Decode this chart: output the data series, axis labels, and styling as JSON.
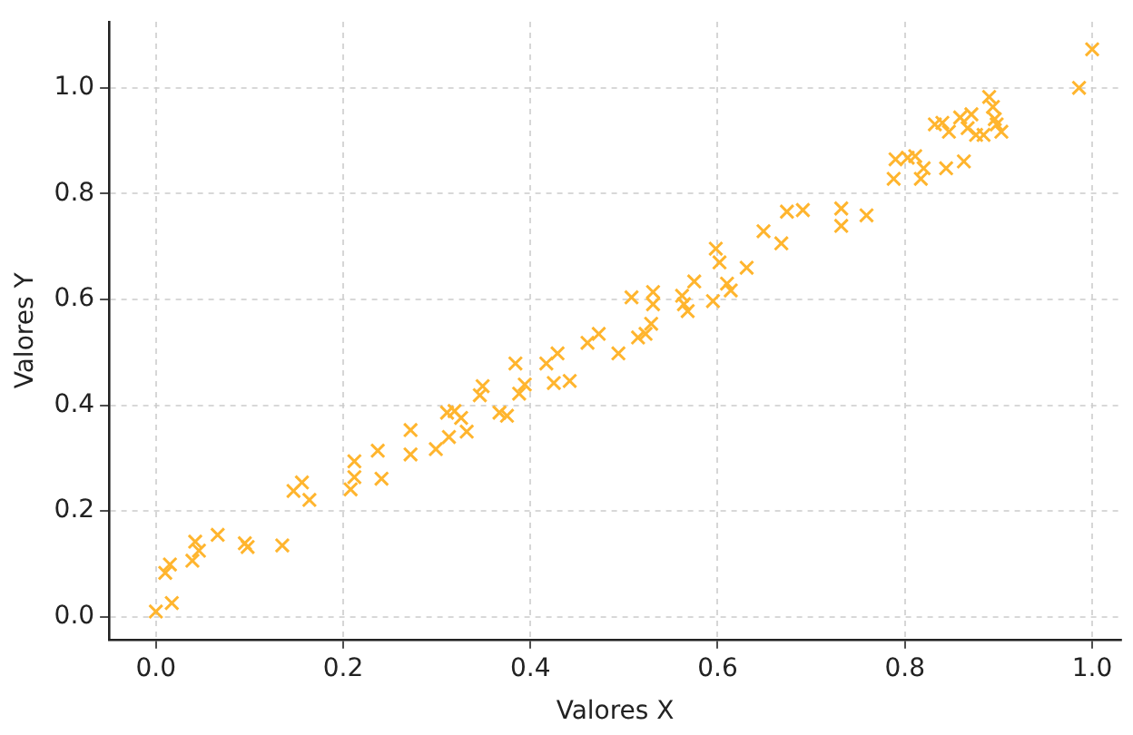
{
  "chart_data": {
    "type": "scatter",
    "xlabel": "Valores X",
    "ylabel": "Valores Y",
    "marker": "cross",
    "grid": true,
    "xlim": [
      -0.05,
      1.031
    ],
    "ylim": [
      -0.043,
      1.125
    ],
    "xticks": [
      {
        "value": 0,
        "label": "0.0"
      },
      0.2,
      0.4,
      0.6,
      0.8,
      {
        "value": 1,
        "label": "1.0"
      }
    ],
    "yticks": [
      {
        "value": 0,
        "label": "0.0"
      },
      0.2,
      0.4,
      0.6,
      0.8,
      {
        "value": 1,
        "label": "1.0"
      }
    ],
    "series": [
      {
        "color": "#ffb52e",
        "x": [
          0.0,
          0.017,
          0.01,
          0.015,
          0.039,
          0.042,
          0.046,
          0.066,
          0.095,
          0.098,
          0.135,
          0.147,
          0.156,
          0.164,
          0.208,
          0.212,
          0.212,
          0.237,
          0.241,
          0.272,
          0.272,
          0.299,
          0.311,
          0.319,
          0.326,
          0.313,
          0.332,
          0.346,
          0.349,
          0.367,
          0.375,
          0.384,
          0.388,
          0.394,
          0.417,
          0.429,
          0.425,
          0.442,
          0.461,
          0.473,
          0.494,
          0.515,
          0.523,
          0.529,
          0.508,
          0.531,
          0.531,
          0.562,
          0.564,
          0.568,
          0.575,
          0.595,
          0.61,
          0.614,
          0.598,
          0.602,
          0.631,
          0.649,
          0.668,
          0.674,
          0.691,
          0.732,
          0.732,
          0.759,
          0.788,
          0.79,
          0.803,
          0.811,
          0.817,
          0.82,
          0.844,
          0.863,
          0.832,
          0.84,
          0.847,
          0.859,
          0.867,
          0.871,
          0.876,
          0.884,
          0.89,
          0.894,
          0.896,
          0.898,
          0.903,
          0.986,
          1.0
        ],
        "values": [
          0.01,
          0.026,
          0.083,
          0.099,
          0.106,
          0.142,
          0.125,
          0.155,
          0.139,
          0.132,
          0.135,
          0.238,
          0.254,
          0.221,
          0.241,
          0.264,
          0.294,
          0.314,
          0.261,
          0.353,
          0.307,
          0.317,
          0.386,
          0.389,
          0.376,
          0.34,
          0.35,
          0.419,
          0.436,
          0.386,
          0.38,
          0.479,
          0.422,
          0.439,
          0.479,
          0.498,
          0.442,
          0.446,
          0.518,
          0.535,
          0.498,
          0.528,
          0.535,
          0.554,
          0.604,
          0.614,
          0.591,
          0.607,
          0.591,
          0.578,
          0.634,
          0.597,
          0.63,
          0.617,
          0.696,
          0.67,
          0.66,
          0.729,
          0.706,
          0.766,
          0.769,
          0.772,
          0.739,
          0.759,
          0.828,
          0.865,
          0.868,
          0.871,
          0.828,
          0.848,
          0.848,
          0.861,
          0.931,
          0.934,
          0.917,
          0.944,
          0.924,
          0.95,
          0.911,
          0.911,
          0.983,
          0.964,
          0.941,
          0.931,
          0.917,
          1.0,
          1.073
        ]
      }
    ]
  }
}
